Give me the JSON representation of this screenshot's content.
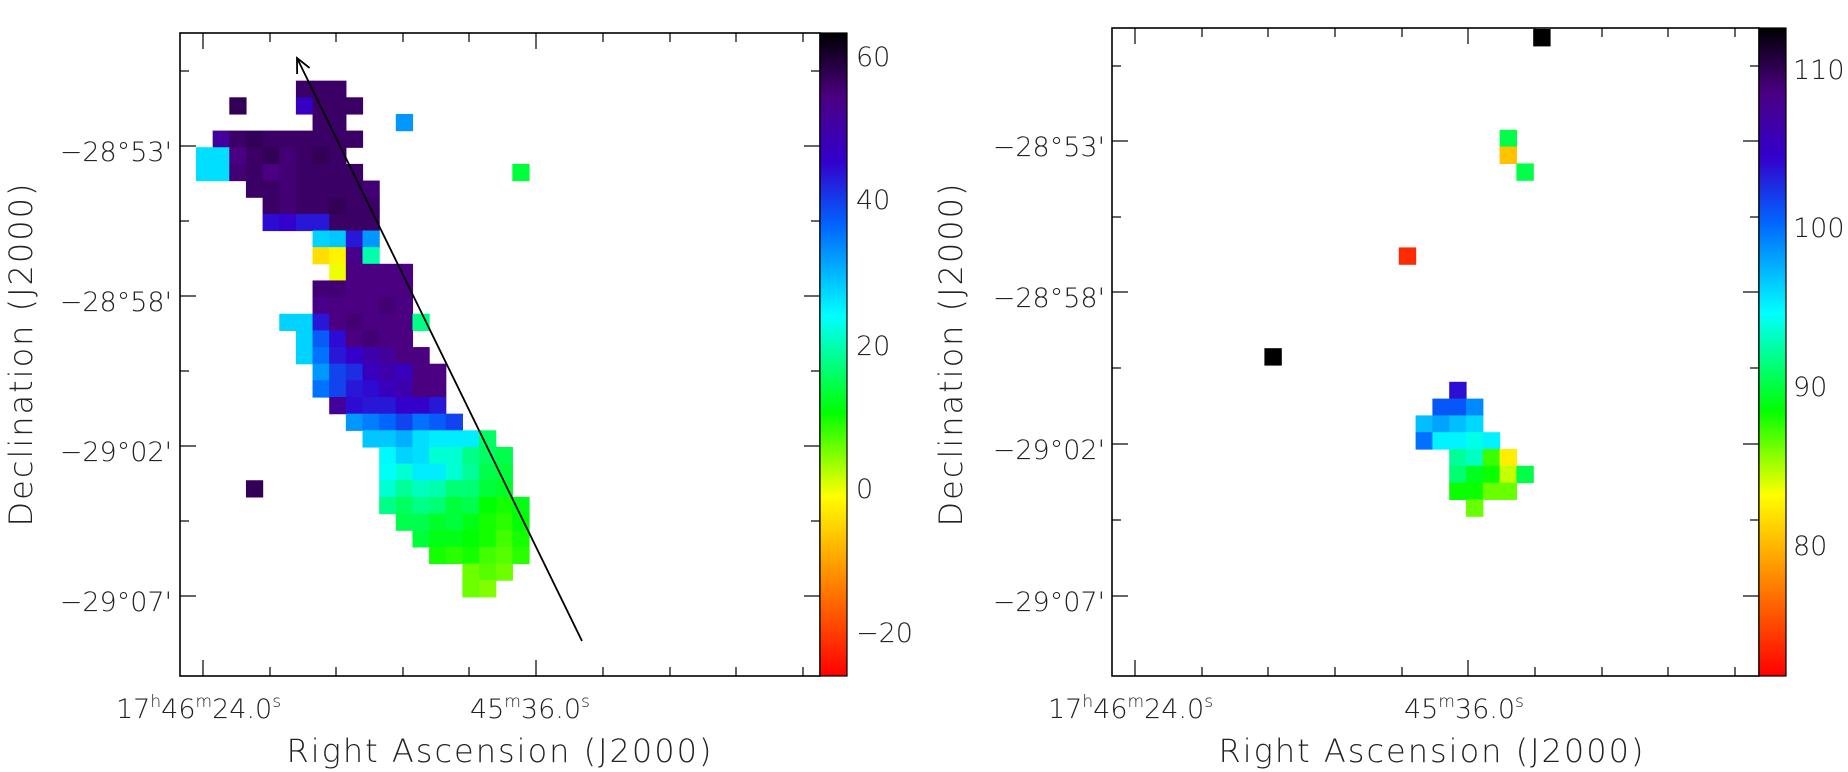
{
  "chart_data": [
    {
      "type": "heatmap",
      "xlabel": "Right Ascension (J2000)",
      "ylabel": "Declination (J2000)",
      "x_ticks": [
        {
          "pre": "17",
          "h": "h",
          "m_val": "46",
          "m": "m",
          "s_val": "24.0",
          "s": "s"
        },
        {
          "pre": "",
          "h": "",
          "m_val": "45",
          "m": "m",
          "s_val": "36.0",
          "s": "s"
        }
      ],
      "y_ticks": [
        "−28°53'",
        "−28°58'",
        "−29°02'",
        "−29°07'"
      ],
      "colorbar": {
        "ticks": [
          "60",
          "40",
          "20",
          "0",
          "−20"
        ],
        "range": [
          -26,
          64
        ]
      },
      "grid": false,
      "arrow": true,
      "pixels": [
        [
          2,
          2,
          58
        ],
        [
          6,
          1,
          57
        ],
        [
          7,
          1,
          57
        ],
        [
          8,
          1,
          57
        ],
        [
          6,
          2,
          47
        ],
        [
          7,
          2,
          57
        ],
        [
          8,
          2,
          57
        ],
        [
          9,
          2,
          57
        ],
        [
          7,
          3,
          57
        ],
        [
          8,
          3,
          57
        ],
        [
          12,
          3,
          33
        ],
        [
          1,
          4,
          52
        ],
        [
          2,
          4,
          57
        ],
        [
          3,
          4,
          58
        ],
        [
          4,
          4,
          57
        ],
        [
          5,
          4,
          57
        ],
        [
          6,
          4,
          57
        ],
        [
          7,
          4,
          57
        ],
        [
          8,
          4,
          57
        ],
        [
          9,
          4,
          57
        ],
        [
          0,
          5,
          27
        ],
        [
          1,
          5,
          27
        ],
        [
          2,
          5,
          55
        ],
        [
          3,
          5,
          57
        ],
        [
          4,
          5,
          58
        ],
        [
          5,
          5,
          56
        ],
        [
          6,
          5,
          57
        ],
        [
          7,
          5,
          58
        ],
        [
          8,
          5,
          57
        ],
        [
          0,
          6,
          27
        ],
        [
          1,
          6,
          27
        ],
        [
          2,
          6,
          56
        ],
        [
          3,
          6,
          57
        ],
        [
          4,
          6,
          55
        ],
        [
          5,
          6,
          56
        ],
        [
          6,
          6,
          57
        ],
        [
          7,
          6,
          57
        ],
        [
          8,
          6,
          57
        ],
        [
          9,
          6,
          57
        ],
        [
          19,
          6,
          14
        ],
        [
          3,
          7,
          57
        ],
        [
          4,
          7,
          57
        ],
        [
          5,
          7,
          56
        ],
        [
          6,
          7,
          57
        ],
        [
          7,
          7,
          57
        ],
        [
          8,
          7,
          57
        ],
        [
          9,
          7,
          57
        ],
        [
          10,
          7,
          56
        ],
        [
          4,
          8,
          57
        ],
        [
          5,
          8,
          56
        ],
        [
          6,
          8,
          57
        ],
        [
          7,
          8,
          57
        ],
        [
          8,
          8,
          58
        ],
        [
          9,
          8,
          57
        ],
        [
          10,
          8,
          57
        ],
        [
          4,
          9,
          45
        ],
        [
          5,
          9,
          46
        ],
        [
          6,
          9,
          44
        ],
        [
          7,
          9,
          44
        ],
        [
          8,
          9,
          57
        ],
        [
          9,
          9,
          57
        ],
        [
          10,
          9,
          57
        ],
        [
          7,
          10,
          28
        ],
        [
          8,
          10,
          29
        ],
        [
          9,
          10,
          44
        ],
        [
          10,
          10,
          33
        ],
        [
          7,
          11,
          -4
        ],
        [
          8,
          11,
          -2
        ],
        [
          9,
          11,
          54
        ],
        [
          10,
          11,
          20
        ],
        [
          8,
          12,
          0
        ],
        [
          9,
          12,
          55
        ],
        [
          10,
          12,
          55
        ],
        [
          11,
          12,
          55
        ],
        [
          12,
          12,
          55
        ],
        [
          7,
          13,
          56
        ],
        [
          8,
          13,
          56
        ],
        [
          9,
          13,
          55
        ],
        [
          10,
          13,
          55
        ],
        [
          11,
          13,
          55
        ],
        [
          12,
          13,
          55
        ],
        [
          7,
          14,
          54
        ],
        [
          8,
          14,
          55
        ],
        [
          9,
          14,
          55
        ],
        [
          10,
          14,
          55
        ],
        [
          11,
          14,
          56
        ],
        [
          12,
          14,
          55
        ],
        [
          5,
          15,
          28
        ],
        [
          6,
          15,
          28
        ],
        [
          7,
          15,
          44
        ],
        [
          8,
          15,
          55
        ],
        [
          9,
          15,
          56
        ],
        [
          10,
          15,
          55
        ],
        [
          11,
          15,
          55
        ],
        [
          12,
          15,
          55
        ],
        [
          13,
          15,
          18
        ],
        [
          6,
          16,
          28
        ],
        [
          7,
          16,
          38
        ],
        [
          8,
          16,
          45
        ],
        [
          9,
          16,
          55
        ],
        [
          10,
          16,
          56
        ],
        [
          11,
          16,
          55
        ],
        [
          12,
          16,
          55
        ],
        [
          6,
          17,
          28
        ],
        [
          7,
          17,
          36
        ],
        [
          8,
          17,
          44
        ],
        [
          9,
          17,
          46
        ],
        [
          10,
          17,
          50
        ],
        [
          11,
          17,
          52
        ],
        [
          12,
          17,
          55
        ],
        [
          13,
          17,
          55
        ],
        [
          7,
          18,
          33
        ],
        [
          8,
          18,
          40
        ],
        [
          9,
          18,
          42
        ],
        [
          10,
          18,
          48
        ],
        [
          11,
          18,
          50
        ],
        [
          12,
          18,
          48
        ],
        [
          13,
          18,
          55
        ],
        [
          14,
          18,
          55
        ],
        [
          7,
          19,
          36
        ],
        [
          8,
          19,
          40
        ],
        [
          9,
          19,
          44
        ],
        [
          10,
          19,
          45
        ],
        [
          11,
          19,
          48
        ],
        [
          12,
          19,
          50
        ],
        [
          13,
          19,
          55
        ],
        [
          14,
          19,
          55
        ],
        [
          8,
          20,
          52
        ],
        [
          9,
          20,
          45
        ],
        [
          10,
          20,
          44
        ],
        [
          11,
          20,
          44
        ],
        [
          12,
          20,
          46
        ],
        [
          13,
          20,
          46
        ],
        [
          14,
          20,
          44
        ],
        [
          9,
          21,
          33
        ],
        [
          10,
          21,
          35
        ],
        [
          11,
          21,
          37
        ],
        [
          12,
          21,
          40
        ],
        [
          13,
          21,
          36
        ],
        [
          14,
          21,
          38
        ],
        [
          15,
          21,
          40
        ],
        [
          10,
          22,
          29
        ],
        [
          11,
          22,
          29
        ],
        [
          12,
          22,
          31
        ],
        [
          13,
          22,
          27
        ],
        [
          14,
          22,
          26
        ],
        [
          15,
          22,
          26
        ],
        [
          16,
          22,
          26
        ],
        [
          17,
          22,
          16
        ],
        [
          11,
          23,
          25
        ],
        [
          12,
          23,
          28
        ],
        [
          13,
          23,
          27
        ],
        [
          14,
          23,
          22
        ],
        [
          15,
          23,
          22
        ],
        [
          16,
          23,
          18
        ],
        [
          17,
          23,
          16
        ],
        [
          18,
          23,
          15
        ],
        [
          11,
          24,
          24
        ],
        [
          12,
          24,
          22
        ],
        [
          13,
          24,
          26
        ],
        [
          14,
          24,
          26
        ],
        [
          15,
          24,
          22
        ],
        [
          16,
          24,
          19
        ],
        [
          17,
          24,
          15
        ],
        [
          18,
          24,
          14
        ],
        [
          3,
          25,
          58
        ],
        [
          11,
          25,
          22
        ],
        [
          12,
          25,
          19
        ],
        [
          13,
          25,
          21
        ],
        [
          14,
          25,
          20
        ],
        [
          15,
          25,
          17
        ],
        [
          16,
          25,
          17
        ],
        [
          17,
          25,
          14
        ],
        [
          18,
          25,
          13
        ],
        [
          11,
          26,
          18
        ],
        [
          12,
          26,
          16
        ],
        [
          13,
          26,
          18
        ],
        [
          14,
          26,
          17
        ],
        [
          15,
          26,
          14
        ],
        [
          16,
          26,
          15
        ],
        [
          17,
          26,
          11
        ],
        [
          18,
          26,
          10
        ],
        [
          19,
          26,
          12
        ],
        [
          12,
          27,
          15
        ],
        [
          13,
          27,
          15
        ],
        [
          14,
          27,
          13
        ],
        [
          15,
          27,
          14
        ],
        [
          16,
          27,
          12
        ],
        [
          17,
          27,
          10
        ],
        [
          18,
          27,
          9
        ],
        [
          19,
          27,
          11
        ],
        [
          13,
          28,
          14
        ],
        [
          14,
          28,
          12
        ],
        [
          15,
          28,
          12
        ],
        [
          16,
          28,
          11
        ],
        [
          17,
          28,
          10
        ],
        [
          18,
          28,
          8
        ],
        [
          19,
          28,
          10
        ],
        [
          14,
          29,
          10
        ],
        [
          15,
          29,
          9
        ],
        [
          16,
          29,
          10
        ],
        [
          17,
          29,
          8
        ],
        [
          18,
          29,
          7
        ],
        [
          19,
          29,
          9
        ],
        [
          16,
          30,
          6
        ],
        [
          17,
          30,
          7
        ],
        [
          18,
          30,
          6
        ],
        [
          16,
          31,
          6
        ],
        [
          17,
          31,
          5
        ]
      ]
    },
    {
      "type": "heatmap",
      "xlabel": "Right Ascension (J2000)",
      "ylabel": "Declination (J2000)",
      "x_ticks": [
        {
          "pre": "17",
          "h": "h",
          "m_val": "46",
          "m": "m",
          "s_val": "24.0",
          "s": "s"
        },
        {
          "pre": "",
          "h": "",
          "m_val": "45",
          "m": "m",
          "s_val": "36.0",
          "s": "s"
        }
      ],
      "y_ticks": [
        "−28°53'",
        "−28°58'",
        "−29°02'",
        "−29°07'"
      ],
      "colorbar": {
        "ticks": [
          "110",
          "100",
          "90",
          "80"
        ],
        "range": [
          71,
          113
        ]
      },
      "grid": false,
      "arrow": false,
      "pixels": [
        [
          24,
          0,
          113
        ],
        [
          22,
          6,
          90
        ],
        [
          22,
          7,
          80
        ],
        [
          23,
          8,
          90
        ],
        [
          16,
          13,
          73
        ],
        [
          8,
          19,
          113
        ],
        [
          19,
          21,
          104
        ],
        [
          18,
          22,
          101
        ],
        [
          19,
          22,
          101
        ],
        [
          20,
          22,
          99
        ],
        [
          17,
          23,
          97
        ],
        [
          18,
          23,
          98
        ],
        [
          19,
          23,
          97
        ],
        [
          20,
          23,
          96
        ],
        [
          17,
          24,
          100
        ],
        [
          18,
          24,
          95
        ],
        [
          19,
          24,
          95
        ],
        [
          20,
          24,
          94
        ],
        [
          21,
          24,
          95
        ],
        [
          19,
          25,
          92
        ],
        [
          20,
          25,
          93
        ],
        [
          21,
          25,
          87
        ],
        [
          22,
          25,
          82
        ],
        [
          19,
          26,
          91
        ],
        [
          20,
          26,
          89
        ],
        [
          21,
          26,
          88
        ],
        [
          22,
          26,
          84
        ],
        [
          23,
          26,
          90
        ],
        [
          19,
          27,
          88
        ],
        [
          20,
          27,
          88
        ],
        [
          21,
          27,
          86
        ],
        [
          22,
          27,
          86
        ],
        [
          20,
          28,
          86
        ]
      ]
    }
  ]
}
